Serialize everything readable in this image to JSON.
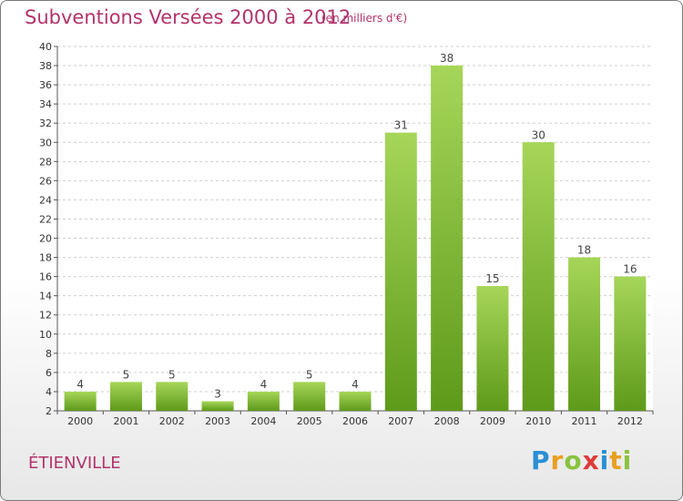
{
  "header": {
    "title": "Subventions Versées 2000 à 2012",
    "subtitle": "(en milliers d'€)"
  },
  "footer": {
    "town": "ÉTIENVILLE",
    "logo_text": [
      "P",
      "r",
      "o",
      "x",
      "i",
      "t",
      "i"
    ]
  },
  "chart_data": {
    "type": "bar",
    "title": "Subventions Versées 2000 à 2012",
    "subtitle": "(en milliers d'€)",
    "categories": [
      "2000",
      "2001",
      "2002",
      "2003",
      "2004",
      "2005",
      "2006",
      "2007",
      "2008",
      "2009",
      "2010",
      "2011",
      "2012"
    ],
    "values": [
      4,
      5,
      5,
      3,
      4,
      5,
      4,
      31,
      38,
      15,
      30,
      18,
      16
    ],
    "ylim": [
      2,
      40
    ],
    "yticks": [
      2,
      4,
      6,
      8,
      10,
      12,
      14,
      16,
      18,
      20,
      22,
      24,
      26,
      28,
      30,
      32,
      34,
      36,
      38,
      40
    ],
    "grid": true,
    "legend": "none",
    "bar_color_light": "#a6d659",
    "bar_color_dark": "#5e9a1a"
  }
}
